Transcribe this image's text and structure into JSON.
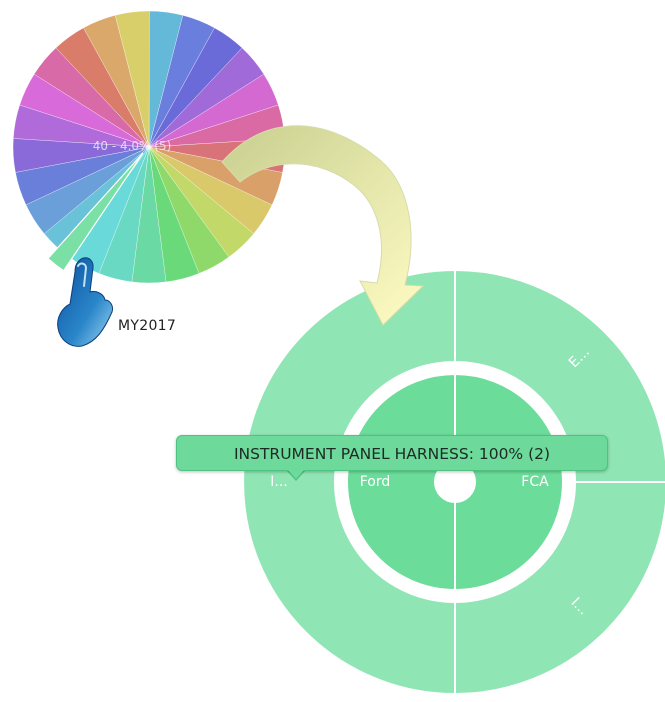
{
  "colors": {
    "sunburst_outer": "#90e5b4",
    "sunburst_inner": "#6cdc9a",
    "tooltip_bg": "#6dd99b",
    "arrow_start": "#c8cf8f",
    "arrow_end": "#fffcc4",
    "hand_color": "#2a86c9"
  },
  "pie_overview": {
    "ghost_label": "40 - 4.0% (5)",
    "callout_label": "MY2017",
    "slice_colors": [
      "#64b9d9",
      "#6a7fdd",
      "#6a6ad9",
      "#a06ad9",
      "#d46ad1",
      "#d96aa4",
      "#d9737a",
      "#d9a06a",
      "#d9c96a",
      "#c2d96a",
      "#8fd96a",
      "#6ad97a",
      "#6ad9a4",
      "#6ad9c4",
      "#6ad9d9",
      "#6ac2d9",
      "#6a9fd9",
      "#6a7fd9",
      "#8a6ad9",
      "#b06ad9",
      "#d96ad9",
      "#d96aa8",
      "#d97d6a",
      "#d9a86a",
      "#d9cf6a"
    ],
    "pointer_icon": "hand-pointer-icon"
  },
  "chart_data": {
    "type": "sunburst",
    "inner_ring": [
      {
        "label": "Ford",
        "value": 1
      },
      {
        "label": "FCA",
        "value": 1
      }
    ],
    "outer_ring": [
      {
        "label": "I...",
        "parent": "Ford",
        "value": 1
      },
      {
        "label": "E...",
        "parent": "FCA",
        "value": 0.5
      },
      {
        "label": "I...",
        "parent": "FCA",
        "value": 0.5
      }
    ],
    "tooltip": "INSTRUMENT PANEL HARNESS: 100% (2)"
  }
}
